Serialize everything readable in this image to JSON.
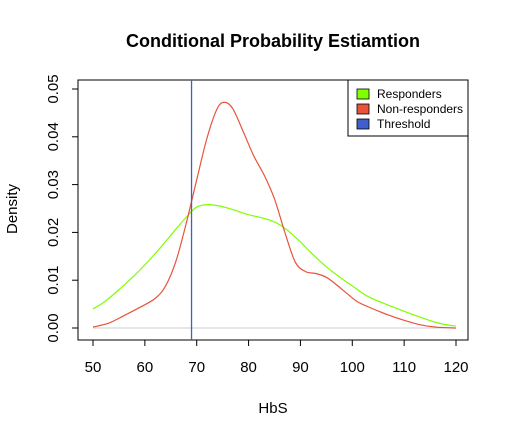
{
  "chart_data": {
    "type": "line",
    "title": "Conditional Probability Estiamtion",
    "xlabel": "HbS",
    "ylabel": "Density",
    "xlim": [
      50,
      120
    ],
    "ylim": [
      0,
      0.05
    ],
    "x_ticks": [
      50,
      60,
      70,
      80,
      90,
      100,
      110,
      120
    ],
    "y_ticks": [
      0.0,
      0.01,
      0.02,
      0.03,
      0.04,
      0.05
    ],
    "y_tick_labels": [
      "0.00",
      "0.01",
      "0.02",
      "0.03",
      "0.04",
      "0.05"
    ],
    "threshold": 69,
    "legend": [
      {
        "label": "Responders",
        "color": "#7FFF00"
      },
      {
        "label": "Non-responders",
        "color": "#E8533A"
      },
      {
        "label": "Threshold",
        "color": "#3F5FCC"
      }
    ],
    "series": [
      {
        "name": "Responders",
        "color": "#7FFF00",
        "x": [
          50,
          52,
          55,
          58,
          60,
          63,
          66,
          68,
          70,
          72,
          74,
          76,
          78,
          80,
          82,
          84,
          86,
          88,
          90,
          92,
          95,
          98,
          100,
          103,
          106,
          110,
          113,
          116,
          118,
          120
        ],
        "y": [
          0.004,
          0.0053,
          0.008,
          0.011,
          0.0132,
          0.0168,
          0.0207,
          0.0232,
          0.0253,
          0.0258,
          0.0256,
          0.0251,
          0.0244,
          0.0237,
          0.0232,
          0.0226,
          0.0216,
          0.02,
          0.018,
          0.0158,
          0.0128,
          0.0103,
          0.0088,
          0.0066,
          0.0052,
          0.0035,
          0.0023,
          0.0012,
          0.0007,
          0.0004
        ]
      },
      {
        "name": "Non-responders",
        "color": "#E8533A",
        "x": [
          50,
          53,
          56,
          59,
          62,
          64,
          66,
          68,
          70,
          72,
          74,
          75.5,
          77,
          79,
          81,
          83,
          85,
          87,
          89,
          91,
          93,
          95,
          97,
          99,
          101,
          104,
          107,
          110,
          113,
          116,
          120
        ],
        "y": [
          0.0002,
          0.001,
          0.0026,
          0.0043,
          0.0062,
          0.0088,
          0.014,
          0.022,
          0.031,
          0.0398,
          0.046,
          0.0472,
          0.0458,
          0.041,
          0.036,
          0.032,
          0.027,
          0.02,
          0.0138,
          0.0118,
          0.0114,
          0.0106,
          0.009,
          0.0072,
          0.0055,
          0.004,
          0.0027,
          0.0016,
          0.0007,
          0.0002,
          0.0
        ]
      }
    ]
  }
}
